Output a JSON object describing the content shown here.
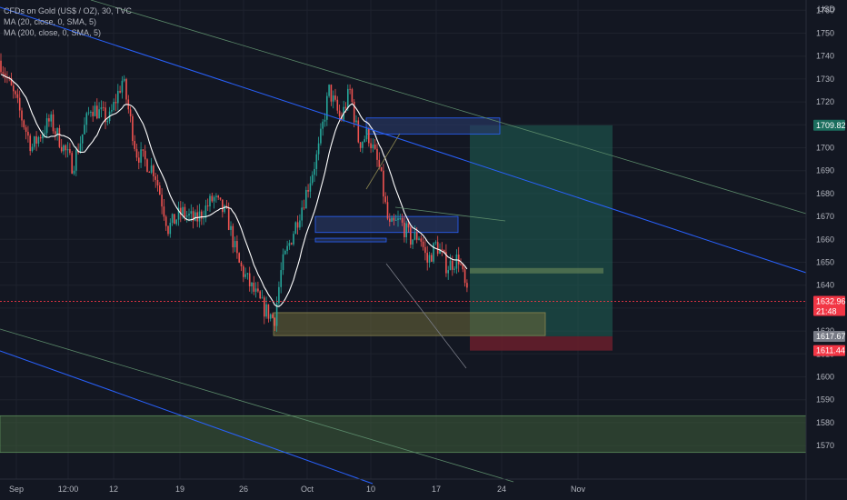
{
  "legend": {
    "title": "CFDs on Gold (US$ / OZ), 30, TVC",
    "ma20": "MA (20, close, 0, SMA, 5)",
    "ma200": "MA (200, close, 0, SMA, 5)"
  },
  "chart_data": {
    "type": "candlestick",
    "currency_label": "USD",
    "y_ticks": [
      1570,
      1580,
      1590,
      1600,
      1610,
      1620,
      1630,
      1640,
      1650,
      1660,
      1670,
      1680,
      1690,
      1700,
      1710,
      1720,
      1730,
      1740,
      1750,
      1760
    ],
    "ylim": [
      1564,
      1782
    ],
    "x_ticks": [
      "Sep",
      "12:00",
      "12",
      "19",
      "26",
      "Oct",
      "10",
      "17",
      "24",
      "Nov"
    ],
    "price_tags": [
      {
        "value": "1709.82",
        "role": "target",
        "bg": "#1b6e5e",
        "fg": "#ffffff"
      },
      {
        "value": "1632.96",
        "sub": "21:48",
        "role": "last",
        "bg": "#f23645",
        "fg": "#ffffff"
      },
      {
        "value": "1617.67",
        "role": "entry",
        "bg": "#787b86",
        "fg": "#ffffff"
      },
      {
        "value": "1611.44",
        "role": "stop",
        "bg": "#f23645",
        "fg": "#ffffff"
      }
    ],
    "last_price": 1632.96,
    "colors": {
      "up": "#26a69a",
      "down": "#ef5350",
      "ma20": "#ffffff",
      "channel": "#2962ff",
      "trend_thin": "#5b8a6a",
      "profit_zone": "#1e5b52",
      "loss_zone": "#6a1f2b",
      "support_zone": "#3f5e3a"
    },
    "grid": true
  }
}
